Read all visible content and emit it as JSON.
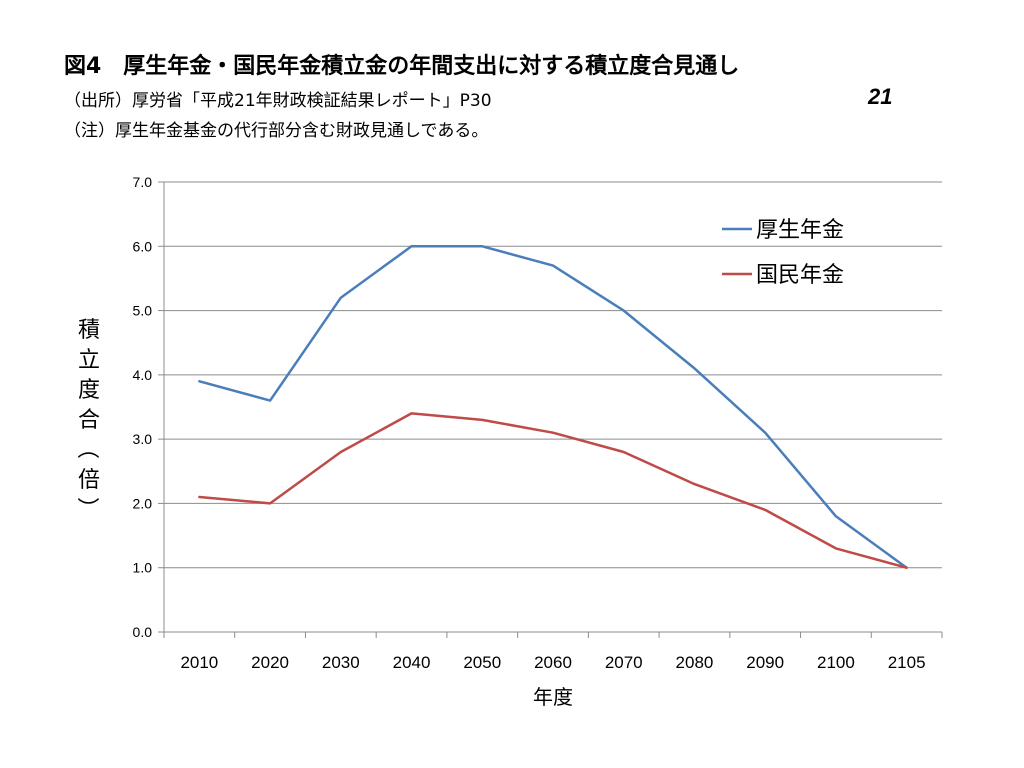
{
  "header": {
    "title": "図4　厚生年金・国民年金積立金の年間支出に対する積立度合見通し",
    "source": "（出所）厚労省「平成21年財政検証結果レポート」P30",
    "note": "（注）厚生年金基金の代行部分含む財政見通しである。",
    "page_number": "21"
  },
  "chart_data": {
    "type": "line",
    "title": "",
    "xlabel": "年度",
    "ylabel": "積立度合（倍）",
    "categories": [
      "2010",
      "2020",
      "2030",
      "2040",
      "2050",
      "2060",
      "2070",
      "2080",
      "2090",
      "2100",
      "2105"
    ],
    "ylim": [
      0,
      7
    ],
    "yticks": [
      "0.0",
      "1.0",
      "2.0",
      "3.0",
      "4.0",
      "5.0",
      "6.0",
      "7.0"
    ],
    "grid": true,
    "legend_position": "top-right",
    "series": [
      {
        "name": "厚生年金",
        "color": "#4a7ebb",
        "values": [
          3.9,
          3.6,
          5.2,
          6.0,
          6.0,
          5.7,
          5.0,
          4.1,
          3.1,
          1.8,
          1.0
        ]
      },
      {
        "name": "国民年金",
        "color": "#be4b48",
        "values": [
          2.1,
          2.0,
          2.8,
          3.4,
          3.3,
          3.1,
          2.8,
          2.3,
          1.9,
          1.3,
          1.0
        ]
      }
    ]
  }
}
